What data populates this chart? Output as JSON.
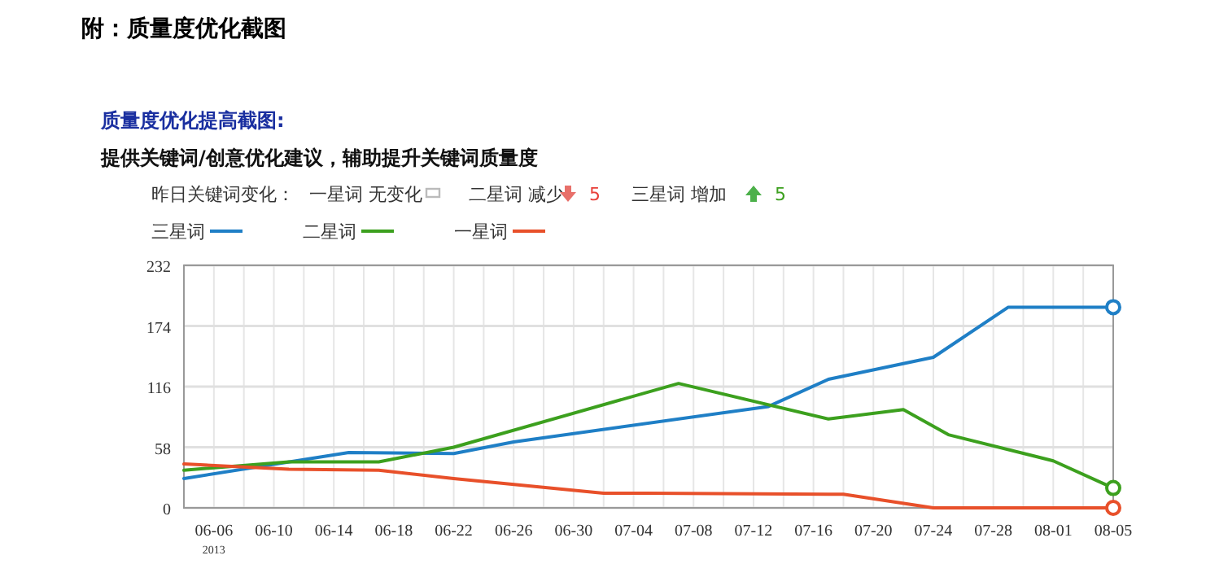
{
  "chart_data": {
    "type": "line",
    "title": "附：质量度优化截图",
    "subtitle": "质量度优化提高截图:",
    "annotations": [
      "提供关键词/创意优化建议，辅助提升关键词质量度",
      "昨日关键词变化：",
      "一星词 无变化",
      "二星词 减少",
      "5",
      "三星词 增加",
      "5"
    ],
    "legend": "top left",
    "grid": true,
    "line_style": "solid",
    "xlim": [
      "2013-06-04",
      "2013-08-05"
    ],
    "xticks": [
      {
        "value": "2013-06-06",
        "label": "06-06$_{2013}$"
      },
      {
        "value": "2013-06-10",
        "label": "06-10"
      },
      {
        "value": "2013-06-14",
        "label": "06-14"
      },
      {
        "value": "2013-06-18",
        "label": "06-18"
      },
      {
        "value": "2013-06-22",
        "label": "06-22"
      },
      {
        "value": "2013-06-26",
        "label": "06-26"
      },
      {
        "value": "2013-06-30",
        "label": "06-30"
      },
      {
        "value": "2013-07-04",
        "label": "07-04"
      },
      {
        "value": "2013-07-08",
        "label": "07-08"
      },
      {
        "value": "2013-07-12",
        "label": "07-12"
      },
      {
        "value": "2013-07-16",
        "label": "07-16"
      },
      {
        "value": "2013-07-20",
        "label": "07-20"
      },
      {
        "value": "2013-07-24",
        "label": "07-24"
      },
      {
        "value": "2013-07-28",
        "label": "07-28"
      },
      {
        "value": "2013-08-01",
        "label": "08-01"
      },
      {
        "value": "2013-08-05",
        "label": "08-05"
      }
    ],
    "ylim": [
      0,
      232
    ],
    "yticks": [
      0,
      58,
      116,
      174,
      232
    ],
    "series": [
      {
        "name": "三星词",
        "color": "#1f7fc6",
        "x": [
          "2013-06-04",
          "2013-06-15",
          "2013-06-22",
          "2013-06-26",
          "2013-07-13",
          "2013-07-17",
          "2013-07-24",
          "2013-07-29",
          "2013-08-05"
        ],
        "values": [
          28,
          53,
          52,
          63,
          97,
          123,
          144,
          192,
          192
        ]
      },
      {
        "name": "二星词",
        "color": "#3ca01e",
        "x": [
          "2013-06-04",
          "2013-06-11",
          "2013-06-17",
          "2013-06-22",
          "2013-07-07",
          "2013-07-17",
          "2013-07-22",
          "2013-07-25",
          "2013-08-01",
          "2013-08-05"
        ],
        "values": [
          36,
          44,
          44,
          58,
          119,
          85,
          94,
          70,
          45,
          19
        ]
      },
      {
        "name": "一星词",
        "color": "#e8502a",
        "x": [
          "2013-06-04",
          "2013-06-11",
          "2013-06-17",
          "2013-06-22",
          "2013-07-02",
          "2013-07-05",
          "2013-07-18",
          "2013-07-24",
          "2013-08-05"
        ],
        "values": [
          42,
          37,
          36,
          28,
          14,
          14,
          13,
          0,
          0
        ]
      }
    ]
  }
}
